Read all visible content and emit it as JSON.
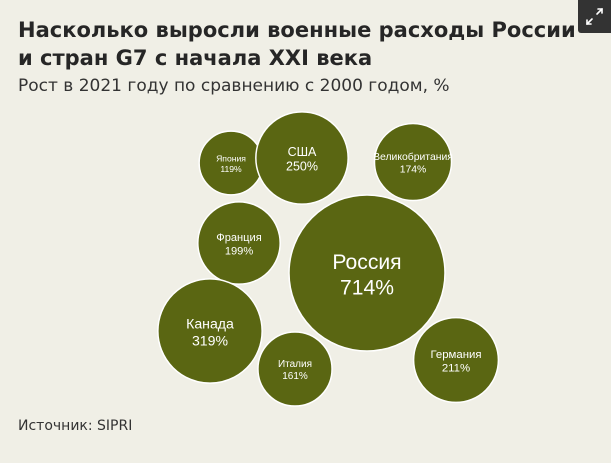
{
  "header": {
    "title": "Насколько выросли военные расходы России и стран G7 с начала XXI века",
    "subtitle": "Рост в 2021 году по сравнению с 2000 годом, %"
  },
  "footer": {
    "source": "Источник: SIPRI"
  },
  "expand_button": {
    "icon": "expand-arrows-icon"
  },
  "colors": {
    "background": "#f0efe6",
    "bubble_fill": "#5a6612",
    "bubble_stroke": "#ffffff",
    "label_text": "#ffffff"
  },
  "chart_data": {
    "type": "bubble",
    "title": "Насколько выросли военные расходы России и стран G7 с начала XXI века",
    "subtitle": "Рост в 2021 году по сравнению с 2000 годом, %",
    "categories": [
      "Япония",
      "США",
      "Великобритания",
      "Франция",
      "Россия",
      "Канада",
      "Италия",
      "Германия"
    ],
    "values": [
      119,
      250,
      174,
      199,
      714,
      319,
      161,
      211
    ],
    "value_labels": [
      "119%",
      "250%",
      "174%",
      "199%",
      "714%",
      "319%",
      "161%",
      "211%"
    ],
    "unit": "%"
  }
}
